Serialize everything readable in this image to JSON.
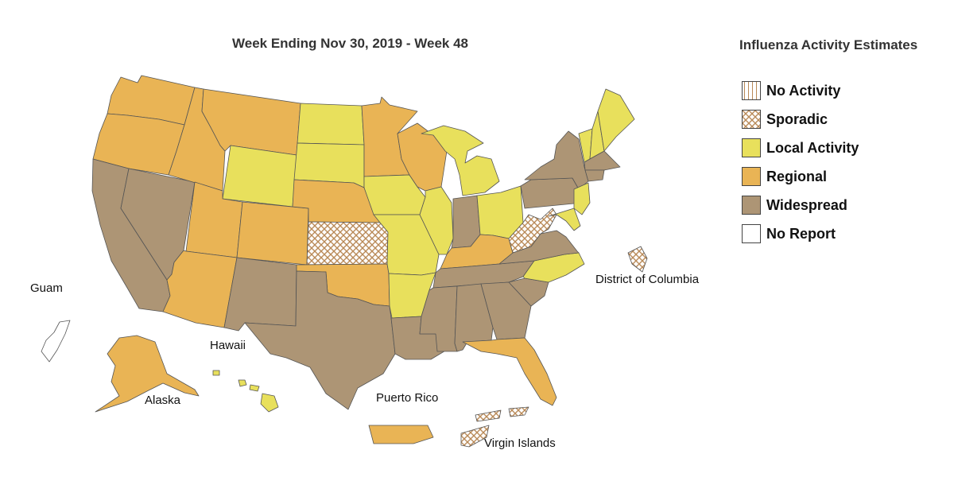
{
  "title": "Week Ending Nov 30, 2019 - Week 48",
  "legend": {
    "title": "Influenza Activity Estimates",
    "items": [
      {
        "label": "No Activity",
        "key": "none"
      },
      {
        "label": "Sporadic",
        "key": "sporadic"
      },
      {
        "label": "Local Activity",
        "key": "local"
      },
      {
        "label": "Regional",
        "key": "regional"
      },
      {
        "label": "Widespread",
        "key": "widespread"
      },
      {
        "label": "No Report",
        "key": "noreport"
      }
    ]
  },
  "colors": {
    "local": "#E8E05C",
    "regional": "#E9B455",
    "widespread": "#AD9575",
    "noreport": "#FFFFFF",
    "hatch": "#B98A58",
    "border": "#555555"
  },
  "territory_labels": {
    "guam": "Guam",
    "hawaii": "Hawaii",
    "alaska": "Alaska",
    "puerto_rico": "Puerto Rico",
    "virgin_islands": "Virgin Islands",
    "dc": "District of Columbia"
  },
  "activity": {
    "WA": "regional",
    "OR": "regional",
    "CA": "widespread",
    "NV": "widespread",
    "ID": "regional",
    "MT": "regional",
    "WY": "local",
    "UT": "regional",
    "AZ": "regional",
    "CO": "regional",
    "NM": "widespread",
    "ND": "local",
    "SD": "local",
    "NE": "regional",
    "KS": "sporadic",
    "OK": "regional",
    "TX": "widespread",
    "MN": "regional",
    "IA": "local",
    "MO": "local",
    "AR": "local",
    "LA": "widespread",
    "WI": "regional",
    "IL": "local",
    "MI": "local",
    "IN": "widespread",
    "OH": "local",
    "KY": "regional",
    "TN": "widespread",
    "MS": "widespread",
    "AL": "widespread",
    "GA": "widespread",
    "FL": "regional",
    "SC": "widespread",
    "NC": "local",
    "VA": "widespread",
    "WV": "sporadic",
    "PA": "widespread",
    "NY": "widespread",
    "VT": "local",
    "NH": "local",
    "ME": "local",
    "MA": "widespread",
    "CT": "widespread",
    "NJ": "local",
    "MD": "local",
    "AK": "regional",
    "HI": "local",
    "PR": "regional",
    "VI": "sporadic",
    "DC": "sporadic",
    "GU": "noreport"
  }
}
